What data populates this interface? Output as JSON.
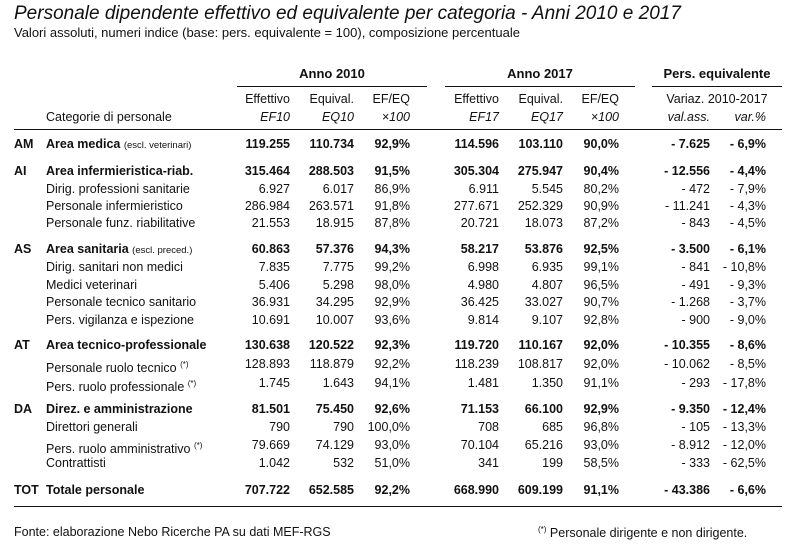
{
  "title": "Personale dipendente effettivo ed equivalente per categoria - Anni 2010 e 2017",
  "subtitle": "Valori assoluti, numeri indice (base: pers. equivalente = 100), composizione percentuale",
  "groups": {
    "y2010": "Anno 2010",
    "y2017": "Anno 2017",
    "pers": "Pers. equivalente"
  },
  "headers": {
    "category": "Categorie di personale",
    "eff": "Effettivo",
    "equiv": "Equival.",
    "efeq": "EF/EQ",
    "ef10": "EF10",
    "eq10": "EQ10",
    "x100": "×100",
    "ef17": "EF17",
    "eq17": "EQ17",
    "variaz": "Variaz. 2010-2017",
    "valass": "val.ass.",
    "varpct": "var.%"
  },
  "rows": [
    {
      "code": "AM",
      "label": "Area medica",
      "note": "(escl. veterinari)",
      "bold": true,
      "vals": [
        "119.255",
        "110.734",
        "92,9%",
        "114.596",
        "103.110",
        "90,0%",
        "- 7.625",
        "- 6,9%"
      ]
    },
    {
      "code": "AI",
      "label": "Area infermieristica-riab.",
      "bold": true,
      "vals": [
        "315.464",
        "288.503",
        "91,5%",
        "305.304",
        "275.947",
        "90,4%",
        "- 12.556",
        "- 4,4%"
      ]
    },
    {
      "label": "Dirig. professioni sanitarie",
      "vals": [
        "6.927",
        "6.017",
        "86,9%",
        "6.911",
        "5.545",
        "80,2%",
        "- 472",
        "- 7,9%"
      ]
    },
    {
      "label": "Personale infermieristico",
      "vals": [
        "286.984",
        "263.571",
        "91,8%",
        "277.671",
        "252.329",
        "90,9%",
        "- 11.241",
        "- 4,3%"
      ]
    },
    {
      "label": "Personale funz. riabilitative",
      "vals": [
        "21.553",
        "18.915",
        "87,8%",
        "20.721",
        "18.073",
        "87,2%",
        "- 843",
        "- 4,5%"
      ]
    },
    {
      "code": "AS",
      "label": "Area sanitaria",
      "note": "(escl. preced.)",
      "bold": true,
      "vals": [
        "60.863",
        "57.376",
        "94,3%",
        "58.217",
        "53.876",
        "92,5%",
        "- 3.500",
        "- 6,1%"
      ]
    },
    {
      "label": "Dirig. sanitari non medici",
      "vals": [
        "7.835",
        "7.775",
        "99,2%",
        "6.998",
        "6.935",
        "99,1%",
        "- 841",
        "- 10,8%"
      ]
    },
    {
      "label": "Medici veterinari",
      "vals": [
        "5.406",
        "5.298",
        "98,0%",
        "4.980",
        "4.807",
        "96,5%",
        "- 491",
        "- 9,3%"
      ]
    },
    {
      "label": "Personale tecnico sanitario",
      "vals": [
        "36.931",
        "34.295",
        "92,9%",
        "36.425",
        "33.027",
        "90,7%",
        "- 1.268",
        "- 3,7%"
      ]
    },
    {
      "label": "Pers. vigilanza e ispezione",
      "vals": [
        "10.691",
        "10.007",
        "93,6%",
        "9.814",
        "9.107",
        "92,8%",
        "- 900",
        "- 9,0%"
      ]
    },
    {
      "code": "AT",
      "label": "Area tecnico-professionale",
      "bold": true,
      "vals": [
        "130.638",
        "120.522",
        "92,3%",
        "119.720",
        "110.167",
        "92,0%",
        "- 10.355",
        "- 8,6%"
      ]
    },
    {
      "label": "Personale ruolo tecnico",
      "sup": "(*)",
      "vals": [
        "128.893",
        "118.879",
        "92,2%",
        "118.239",
        "108.817",
        "92,0%",
        "- 10.062",
        "- 8,5%"
      ]
    },
    {
      "label": "Pers. ruolo professionale",
      "sup": "(*)",
      "vals": [
        "1.745",
        "1.643",
        "94,1%",
        "1.481",
        "1.350",
        "91,1%",
        "- 293",
        "- 17,8%"
      ]
    },
    {
      "code": "DA",
      "label": "Direz. e amministrazione",
      "bold": true,
      "vals": [
        "81.501",
        "75.450",
        "92,6%",
        "71.153",
        "66.100",
        "92,9%",
        "- 9.350",
        "- 12,4%"
      ]
    },
    {
      "label": "Direttori generali",
      "vals": [
        "790",
        "790",
        "100,0%",
        "708",
        "685",
        "96,8%",
        "- 105",
        "- 13,3%"
      ]
    },
    {
      "label": "Pers. ruolo amministrativo",
      "sup": "(*)",
      "vals": [
        "79.669",
        "74.129",
        "93,0%",
        "70.104",
        "65.216",
        "93,0%",
        "- 8.912",
        "- 12,0%"
      ]
    },
    {
      "label": "Contrattisti",
      "vals": [
        "1.042",
        "532",
        "51,0%",
        "341",
        "199",
        "58,5%",
        "- 333",
        "- 62,5%"
      ]
    },
    {
      "code": "TOT",
      "label": "Totale personale",
      "bold": true,
      "vals": [
        "707.722",
        "652.585",
        "92,2%",
        "668.990",
        "609.199",
        "91,1%",
        "- 43.386",
        "- 6,6%"
      ]
    }
  ],
  "footer": {
    "source": "Fonte: elaborazione Nebo Ricerche PA su dati MEF-RGS",
    "note_mark": "(*)",
    "note_text": " Personale dirigente e non dirigente."
  }
}
